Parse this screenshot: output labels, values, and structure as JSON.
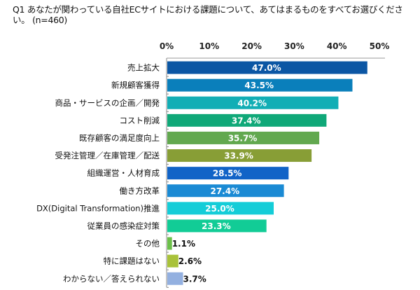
{
  "chart_data": {
    "type": "bar",
    "orientation": "horizontal",
    "title": "Q1 あなたが関わっている自社ECサイトにおける課題について、あてはまるものをすべてお選びください。 (n=460)",
    "xlim": [
      0,
      50
    ],
    "tick_labels": [
      "0%",
      "10%",
      "20%",
      "30%",
      "40%",
      "50%"
    ],
    "ticks": [
      0,
      10,
      20,
      30,
      40,
      50
    ],
    "grid": false,
    "categories": [
      "売上拡大",
      "新規顧客獲得",
      "商品・サービスの企画／開発",
      "コスト削減",
      "既存顧客の満足度向上",
      "受発注管理／在庫管理／配送",
      "組織運営・人材育成",
      "働き方改革",
      "DX(Digital Transformation)推進",
      "従業員の感染症対策",
      "その他",
      "特に課題はない",
      "わからない／答えられない"
    ],
    "values": [
      47.0,
      43.5,
      40.2,
      37.4,
      35.7,
      33.9,
      28.5,
      27.4,
      25.0,
      23.3,
      1.1,
      2.6,
      3.7
    ],
    "value_labels": [
      "47.0%",
      "43.5%",
      "40.2%",
      "37.4%",
      "35.7%",
      "33.9%",
      "28.5%",
      "27.4%",
      "25.0%",
      "23.3%",
      "1.1%",
      "2.6%",
      "3.7%"
    ],
    "colors": [
      "#0b56a4",
      "#0a7fbb",
      "#12aeb5",
      "#0fa878",
      "#62a84f",
      "#889e36",
      "#1163c7",
      "#1a8ad4",
      "#14cdd8",
      "#12cc96",
      "#6cc04a",
      "#a9c23a",
      "#93b0e0"
    ]
  }
}
